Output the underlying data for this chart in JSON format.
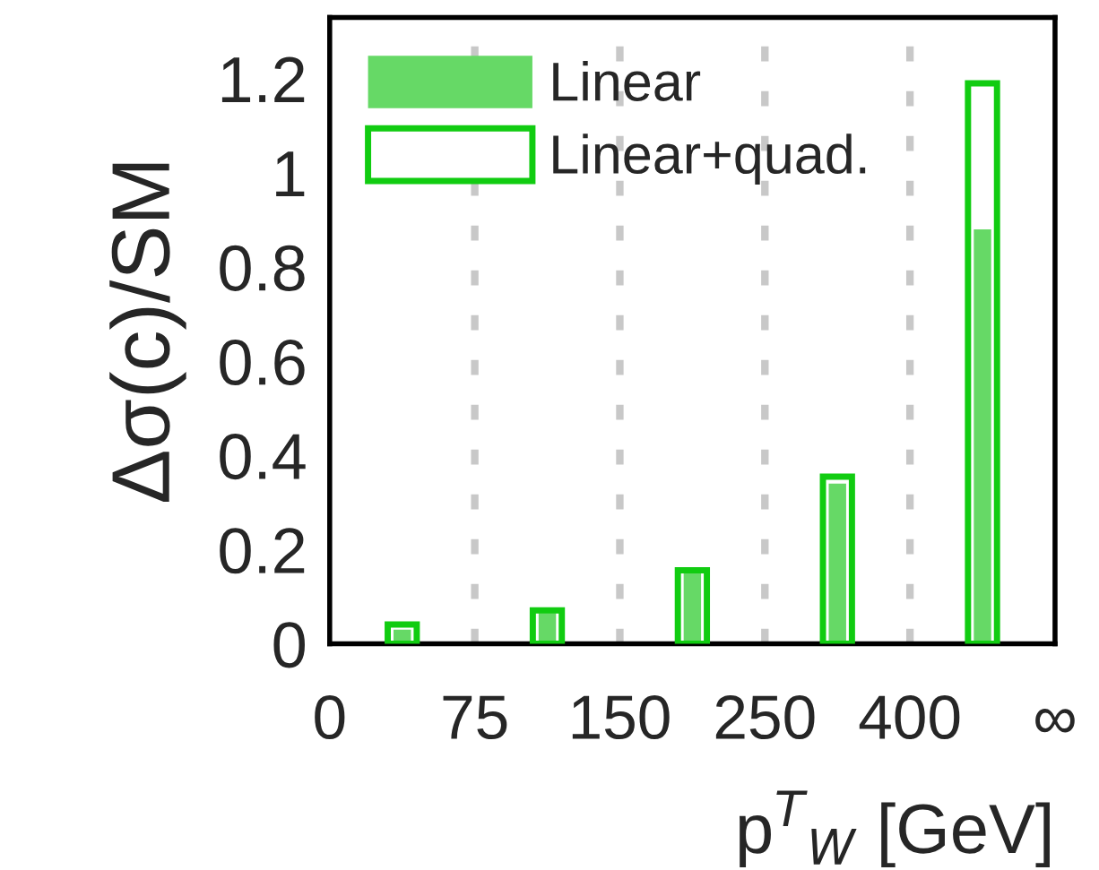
{
  "chart_data": {
    "type": "bar",
    "xlabel": "p$^{T}$$_{W}$ [GeV]",
    "ylabel": "Δσ(c)/SM",
    "categories": [
      null,
      null,
      null,
      null,
      null
    ],
    "series": [
      {
        "name": "Linear",
        "color": "#66d966",
        "values": [
          0.03,
          0.065,
          0.15,
          0.34,
          0.88
        ]
      },
      {
        "name": "Linear+quad.",
        "color": "#11cc11",
        "values": [
          0.041,
          0.071,
          0.156,
          0.355,
          1.19
        ]
      }
    ],
    "annotations": [
      "0",
      "75",
      "150",
      "250",
      "400",
      "∞"
    ],
    "ylim": [
      0,
      1.33
    ],
    "yticks": [
      0,
      0.2,
      0.4,
      0.6,
      0.8,
      1,
      1.2
    ],
    "grid": "x",
    "legend": "top left"
  }
}
